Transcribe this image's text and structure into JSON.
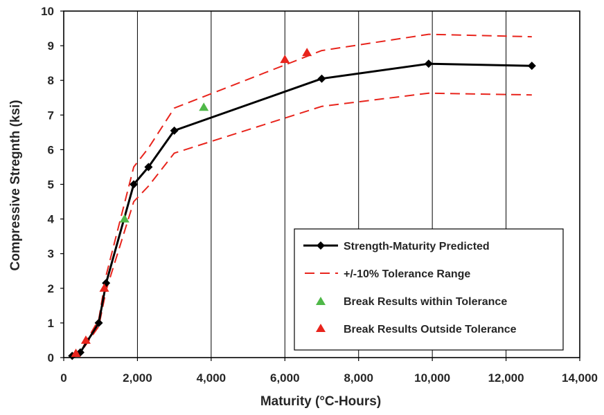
{
  "chart_data": {
    "type": "line",
    "title": "",
    "xlabel": "Maturity (°C-Hours)",
    "ylabel": "Compressive Stregnth (ksi)",
    "xlim": [
      0,
      14000
    ],
    "ylim": [
      0,
      10
    ],
    "x_ticks": [
      0,
      2000,
      4000,
      6000,
      8000,
      10000,
      12000,
      14000
    ],
    "x_tick_labels": [
      "0",
      "2,000",
      "4,000",
      "6,000",
      "8,000",
      "10,000",
      "12,000",
      "14,000"
    ],
    "y_ticks": [
      0,
      1,
      2,
      3,
      4,
      5,
      6,
      7,
      8,
      9,
      10
    ],
    "y_tick_labels": [
      "0",
      "1",
      "2",
      "3",
      "4",
      "5",
      "6",
      "7",
      "8",
      "9",
      "10"
    ],
    "grid": "vertical major gridlines",
    "legend_position": "bottom-right",
    "series": [
      {
        "name": "Strength-Maturity Predicted",
        "style": "solid line with diamond markers",
        "color": "#000000",
        "x": [
          230,
          450,
          950,
          1150,
          1900,
          2300,
          3000,
          7000,
          9900,
          12700
        ],
        "y": [
          0.05,
          0.15,
          1.0,
          2.15,
          5.0,
          5.5,
          6.55,
          8.05,
          8.48,
          8.42
        ]
      },
      {
        "name": "+/-10% Tolerance Range",
        "style": "dashed line (upper bound)",
        "color": "#e8241c",
        "x": [
          230,
          450,
          950,
          1150,
          1900,
          2300,
          3000,
          7000,
          9900,
          12700
        ],
        "y": [
          0.06,
          0.17,
          1.1,
          2.37,
          5.5,
          6.05,
          7.2,
          8.86,
          9.33,
          9.26
        ]
      },
      {
        "name": "",
        "style": "dashed line (lower bound)",
        "color": "#e8241c",
        "x": [
          230,
          450,
          950,
          1150,
          1900,
          2300,
          3000,
          7000,
          9900,
          12700
        ],
        "y": [
          0.05,
          0.14,
          0.9,
          1.94,
          4.5,
          4.95,
          5.9,
          7.25,
          7.63,
          7.58
        ]
      },
      {
        "name": "Break Results within Tolerance",
        "style": "triangle markers",
        "color": "#4fb848",
        "x": [
          1650,
          3800
        ],
        "y": [
          4.0,
          7.22
        ]
      },
      {
        "name": "Break Results Outside Tolerance",
        "style": "triangle markers",
        "color": "#e8241c",
        "x": [
          330,
          600,
          1100,
          6000,
          6600
        ],
        "y": [
          0.12,
          0.5,
          2.0,
          8.6,
          8.8
        ]
      }
    ]
  }
}
